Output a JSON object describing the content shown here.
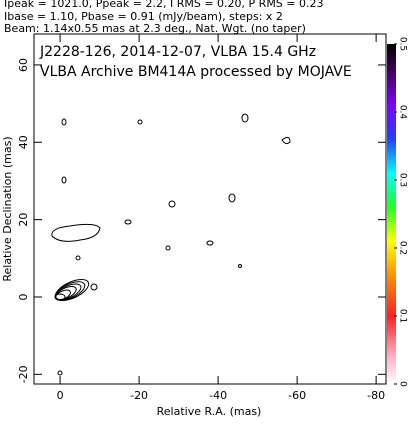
{
  "chart_data": {
    "type": "contour",
    "header": [
      "Ipeak = 1021.0, Ppeak = 2.2, I RMS = 0.20, P RMS = 0.23",
      "Ibase = 1.10, Pbase = 0.91 (mJy/beam), steps: x 2",
      "Beam: 1.14x0.55 mas at 2.3 deg., Nat. Wgt. (no taper)"
    ],
    "annotations": [
      "J2228-126, 2014-12-07, VLBA 15.4 GHz",
      "VLBA Archive BM414A processed by MOJAVE"
    ],
    "x_label": "Relative R.A. (mas)",
    "y_label": "Relative Declination (mas)",
    "xlim": [
      6.6,
      -82.5
    ],
    "xticks": [
      0,
      -20,
      -40,
      -60,
      -80
    ],
    "ylim": [
      -22.5,
      68
    ],
    "yticks": [
      -20,
      0,
      20,
      40,
      60
    ],
    "colorbar": {
      "lim": [
        0,
        0.5
      ],
      "ticks": [
        0,
        0.1,
        0.2,
        0.3,
        0.4,
        0.5
      ]
    }
  }
}
